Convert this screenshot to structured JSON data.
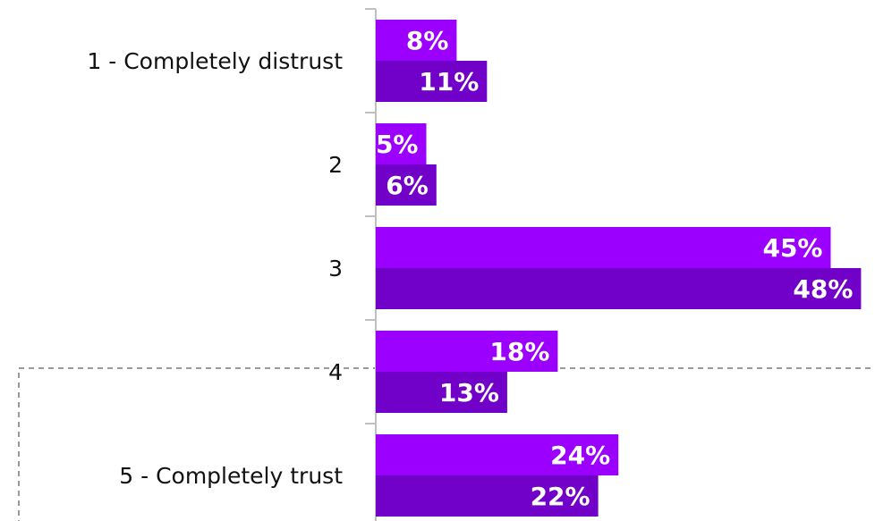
{
  "chart_data": {
    "type": "bar",
    "orientation": "horizontal",
    "categories": [
      "1 - Completely distrust",
      "2",
      "3",
      "4",
      "5 - Completely trust"
    ],
    "series": [
      {
        "values": [
          8,
          5,
          45,
          18,
          24
        ],
        "labels": [
          "8%",
          "5%",
          "45%",
          "18%",
          "24%"
        ],
        "color": "#9B00FF"
      },
      {
        "values": [
          11,
          6,
          48,
          13,
          22
        ],
        "labels": [
          "11%",
          "6%",
          "48%",
          "13%",
          "22%"
        ],
        "color": "#7100C8"
      }
    ],
    "xlim": [
      0,
      50
    ],
    "grid": false,
    "legend": "none",
    "annotations": [
      {
        "type": "dashed-box",
        "categories": [
          "4",
          "5 - Completely trust"
        ],
        "color": "#999999"
      }
    ]
  }
}
